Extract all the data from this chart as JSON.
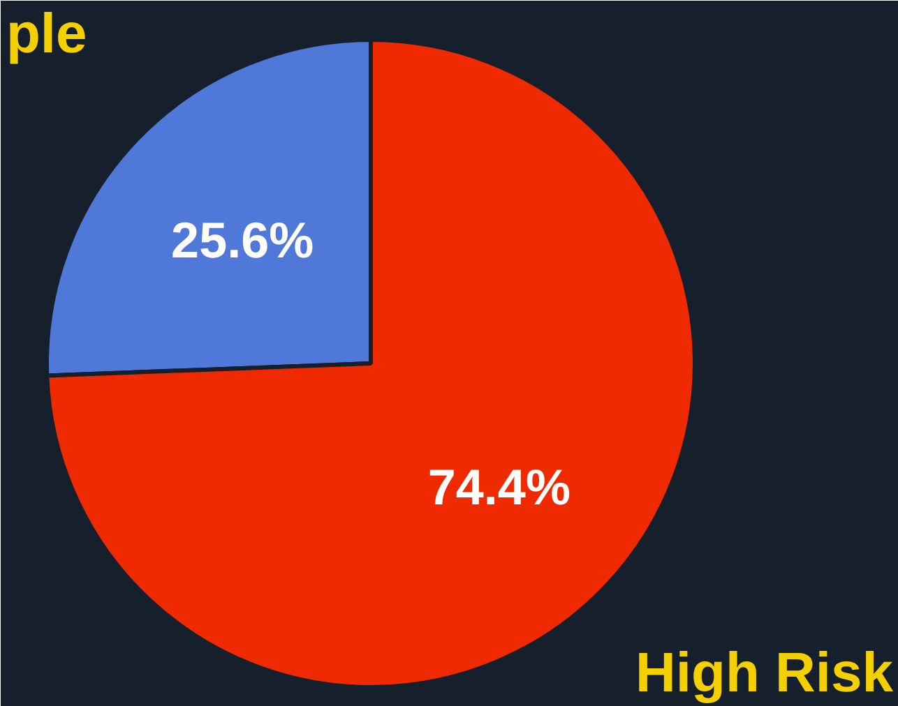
{
  "chart_data": {
    "type": "pie",
    "categories": [
      "ple",
      "High Risk"
    ],
    "values": [
      25.6,
      74.4
    ],
    "colors": [
      "#4f78d8",
      "#f02a00"
    ],
    "value_labels": [
      "25.6%",
      "74.4%"
    ]
  }
}
